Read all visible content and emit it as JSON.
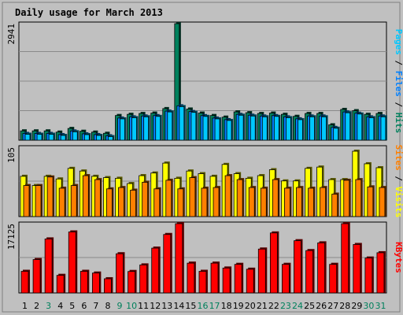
{
  "colors": {
    "background": "#C0C0C0",
    "plot_bg": "#C0C0C0",
    "title": "#0000C0",
    "hits": "#00805C",
    "files": "#0080FF",
    "pages": "#00C8FF",
    "visits": "#FFFF00",
    "sites": "#FF8000",
    "kbytes": "#FF0000",
    "weekend": "#00805C",
    "grid": "#8A8A8A",
    "text": "#000000"
  },
  "chart_data": [
    {
      "type": "bar",
      "panel": "hits-files-pages",
      "title": "Daily usage for March 2013",
      "categories": [
        "1",
        "2",
        "3",
        "4",
        "5",
        "6",
        "7",
        "8",
        "9",
        "10",
        "11",
        "12",
        "13",
        "14",
        "15",
        "16",
        "17",
        "18",
        "19",
        "20",
        "21",
        "22",
        "23",
        "24",
        "25",
        "26",
        "27",
        "28",
        "29",
        "30",
        "31"
      ],
      "ymax_label": "2941",
      "ylim": [
        0,
        2941
      ],
      "weekend_days": [
        "3",
        "9",
        "10",
        "16",
        "17",
        "23",
        "24",
        "30",
        "31"
      ],
      "legend": [
        {
          "text": "Pages",
          "color_key": "pages"
        },
        {
          "text": "Files",
          "color_key": "files"
        },
        {
          "text": "Hits",
          "color_key": "hits"
        }
      ],
      "series": [
        {
          "name": "Hits",
          "values": [
            235,
            235,
            235,
            204,
            296,
            225,
            204,
            174,
            623,
            653,
            674,
            684,
            797,
            2941,
            786,
            684,
            623,
            582,
            715,
            694,
            674,
            684,
            653,
            602,
            674,
            674,
            388,
            776,
            745,
            653,
            674
          ]
        },
        {
          "name": "Files",
          "values": [
            170,
            170,
            170,
            140,
            232,
            160,
            140,
            110,
            558,
            588,
            610,
            620,
            733,
            867,
            722,
            620,
            558,
            518,
            650,
            630,
            610,
            620,
            588,
            538,
            610,
            610,
            322,
            712,
            680,
            588,
            610
          ]
        },
        {
          "name": "Pages",
          "values": [
            150,
            150,
            150,
            120,
            212,
            140,
            120,
            90,
            538,
            568,
            590,
            600,
            713,
            847,
            702,
            600,
            538,
            498,
            630,
            610,
            590,
            600,
            568,
            518,
            590,
            590,
            302,
            692,
            660,
            568,
            590
          ]
        }
      ]
    },
    {
      "type": "bar",
      "panel": "visits-sites",
      "categories": [
        "1",
        "2",
        "3",
        "4",
        "5",
        "6",
        "7",
        "8",
        "9",
        "10",
        "11",
        "12",
        "13",
        "14",
        "15",
        "16",
        "17",
        "18",
        "19",
        "20",
        "21",
        "22",
        "23",
        "24",
        "25",
        "26",
        "27",
        "28",
        "29",
        "30",
        "31"
      ],
      "ymax_label": "105",
      "ylim": [
        0,
        105
      ],
      "legend": [
        {
          "text": "Sites",
          "color_key": "sites"
        },
        {
          "text": "Visits",
          "color_key": "visits"
        }
      ],
      "series": [
        {
          "name": "Visits",
          "values": [
            61,
            47,
            61,
            57,
            73,
            69,
            61,
            59,
            58,
            50,
            62,
            66,
            81,
            58,
            69,
            65,
            61,
            79,
            65,
            58,
            62,
            71,
            54,
            54,
            73,
            75,
            56,
            56,
            99,
            80,
            74
          ]
        },
        {
          "name": "Sites",
          "values": [
            47,
            47,
            60,
            43,
            47,
            62,
            56,
            42,
            44,
            40,
            52,
            42,
            55,
            42,
            59,
            43,
            44,
            62,
            56,
            44,
            43,
            56,
            43,
            44,
            43,
            44,
            34,
            55,
            56,
            45,
            44
          ]
        }
      ]
    },
    {
      "type": "bar",
      "panel": "kbytes",
      "categories": [
        "1",
        "2",
        "3",
        "4",
        "5",
        "6",
        "7",
        "8",
        "9",
        "10",
        "11",
        "12",
        "13",
        "14",
        "15",
        "16",
        "17",
        "18",
        "19",
        "20",
        "21",
        "22",
        "23",
        "24",
        "25",
        "26",
        "27",
        "28",
        "29",
        "30",
        "31"
      ],
      "ymax_label": "17125",
      "ylim": [
        0,
        17125
      ],
      "legend": [
        {
          "text": "KBytes",
          "color_key": "kbytes"
        }
      ],
      "series": [
        {
          "name": "KBytes",
          "values": [
            5350,
            8260,
            13350,
            4350,
            15080,
            5350,
            4920,
            3510,
            9690,
            5310,
            6930,
            11080,
            14450,
            17125,
            7370,
            5350,
            7370,
            6160,
            7070,
            5870,
            10850,
            14830,
            7070,
            12910,
            10470,
            12380,
            7070,
            17125,
            11980,
            8630,
            9940
          ]
        }
      ]
    }
  ]
}
